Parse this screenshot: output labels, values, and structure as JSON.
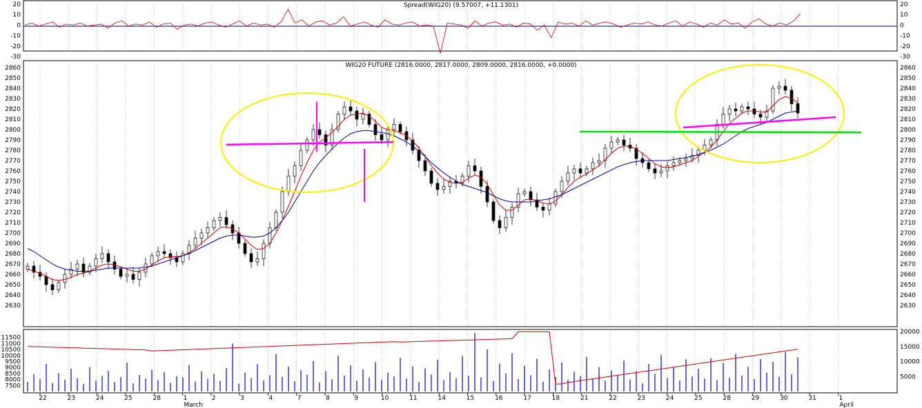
{
  "chart_data": [
    {
      "type": "line",
      "title": "Spread(WIG20) (9.57007, +11.1301)",
      "ylim": [
        -30,
        20
      ],
      "y_ticks": [
        "20",
        "10",
        "0",
        "-10",
        "-20",
        "-30"
      ],
      "series": [
        {
          "name": "",
          "color": "#cc0000",
          "values": [
            0,
            2,
            -1,
            1,
            3,
            -2,
            1,
            0,
            2,
            -1,
            0,
            1,
            -3,
            2,
            4,
            -1,
            1,
            0,
            3,
            -2,
            1,
            2,
            -4,
            0,
            1,
            -1,
            2,
            3,
            0,
            -2,
            1,
            4,
            -1,
            2,
            0,
            1,
            -2,
            3,
            15,
            2,
            5,
            -1,
            3,
            4,
            0,
            2,
            8,
            -1,
            1,
            3,
            0,
            -2,
            5,
            1,
            0,
            2,
            3,
            -1,
            0,
            -1,
            -27,
            2,
            1,
            0,
            -3,
            4,
            -1,
            2,
            3,
            0,
            1,
            -2,
            2,
            1,
            -5,
            0,
            -12,
            3,
            1,
            2,
            -1,
            4,
            0,
            2,
            3,
            1,
            -2,
            0,
            2,
            1,
            3,
            0,
            -1,
            2,
            4,
            -1,
            3,
            1,
            -2,
            2,
            0,
            5,
            1,
            2,
            -3,
            3,
            6,
            1,
            -1,
            2,
            0,
            4,
            11
          ]
        }
      ]
    },
    {
      "type": "candlestick",
      "title": "WIG20 FUTURE (2816.0000, 2817.0000, 2809.0000, 2816.0000, +0.0000)",
      "ylim": [
        2620,
        2860
      ],
      "y_ticks": [
        "2860",
        "2850",
        "2840",
        "2830",
        "2820",
        "2810",
        "2800",
        "2790",
        "2780",
        "2770",
        "2760",
        "2750",
        "2740",
        "2730",
        "2720",
        "2710",
        "2700",
        "2690",
        "2680",
        "2670",
        "2660",
        "2650",
        "2640",
        "2630"
      ],
      "x_ticks": [
        "22",
        "23",
        "24",
        "25",
        "28",
        "1",
        "2",
        "3",
        "4",
        "7",
        "8",
        "9",
        "10",
        "11",
        "14",
        "15",
        "16",
        "17",
        "18",
        "21",
        "22",
        "23",
        "24",
        "25",
        "28",
        "29",
        "30",
        "31",
        "1"
      ],
      "month_labels": [
        "March",
        "April"
      ],
      "close": [
        2668,
        2662,
        2658,
        2650,
        2645,
        2652,
        2660,
        2665,
        2670,
        2662,
        2668,
        2675,
        2680,
        2672,
        2665,
        2658,
        2660,
        2655,
        2662,
        2670,
        2678,
        2682,
        2680,
        2676,
        2672,
        2680,
        2688,
        2695,
        2700,
        2705,
        2712,
        2715,
        2708,
        2700,
        2690,
        2680,
        2672,
        2675,
        2690,
        2705,
        2720,
        2740,
        2755,
        2765,
        2780,
        2790,
        2800,
        2795,
        2785,
        2800,
        2815,
        2822,
        2818,
        2810,
        2815,
        2805,
        2795,
        2790,
        2800,
        2805,
        2798,
        2790,
        2780,
        2770,
        2760,
        2748,
        2742,
        2745,
        2750,
        2748,
        2755,
        2765,
        2760,
        2745,
        2730,
        2712,
        2705,
        2715,
        2725,
        2738,
        2740,
        2732,
        2725,
        2722,
        2728,
        2740,
        2750,
        2758,
        2762,
        2758,
        2762,
        2768,
        2770,
        2782,
        2788,
        2790,
        2785,
        2782,
        2772,
        2768,
        2762,
        2758,
        2760,
        2765,
        2768,
        2770,
        2772,
        2775,
        2780,
        2785,
        2790,
        2805,
        2815,
        2820,
        2818,
        2822,
        2820,
        2815,
        2812,
        2818,
        2840,
        2842,
        2838,
        2825,
        2816
      ],
      "ma_fast": [
        2665,
        2663,
        2661,
        2658,
        2655,
        2654,
        2655,
        2657,
        2660,
        2661,
        2663,
        2666,
        2669,
        2670,
        2669,
        2667,
        2665,
        2663,
        2663,
        2665,
        2669,
        2673,
        2676,
        2677,
        2677,
        2678,
        2681,
        2685,
        2690,
        2695,
        2700,
        2705,
        2706,
        2704,
        2700,
        2694,
        2688,
        2684,
        2685,
        2690,
        2700,
        2712,
        2726,
        2740,
        2755,
        2768,
        2780,
        2788,
        2792,
        2797,
        2803,
        2810,
        2814,
        2815,
        2816,
        2813,
        2808,
        2802,
        2800,
        2799,
        2797,
        2794,
        2789,
        2782,
        2774,
        2765,
        2758,
        2752,
        2749,
        2748,
        2749,
        2753,
        2756,
        2754,
        2747,
        2737,
        2727,
        2722,
        2722,
        2727,
        2732,
        2733,
        2731,
        2729,
        2728,
        2731,
        2737,
        2744,
        2750,
        2754,
        2757,
        2761,
        2765,
        2771,
        2777,
        2782,
        2784,
        2784,
        2781,
        2777,
        2772,
        2767,
        2764,
        2763,
        2764,
        2766,
        2768,
        2770,
        2774,
        2778,
        2783,
        2790,
        2798,
        2806,
        2811,
        2816,
        2818,
        2818,
        2817,
        2817,
        2823,
        2829,
        2832,
        2830,
        2826
      ],
      "ma_slow": [
        2685,
        2682,
        2678,
        2674,
        2670,
        2667,
        2665,
        2664,
        2663,
        2663,
        2663,
        2664,
        2665,
        2666,
        2666,
        2666,
        2666,
        2666,
        2666,
        2667,
        2668,
        2670,
        2672,
        2674,
        2676,
        2678,
        2680,
        2683,
        2686,
        2689,
        2692,
        2695,
        2697,
        2698,
        2698,
        2697,
        2696,
        2696,
        2697,
        2700,
        2705,
        2712,
        2720,
        2730,
        2740,
        2750,
        2760,
        2768,
        2775,
        2781,
        2787,
        2792,
        2796,
        2798,
        2799,
        2799,
        2798,
        2797,
        2796,
        2794,
        2791,
        2788,
        2784,
        2779,
        2774,
        2768,
        2763,
        2758,
        2754,
        2750,
        2747,
        2745,
        2743,
        2741,
        2739,
        2736,
        2733,
        2731,
        2730,
        2730,
        2730,
        2730,
        2731,
        2732,
        2733,
        2735,
        2737,
        2740,
        2743,
        2746,
        2749,
        2752,
        2755,
        2758,
        2761,
        2764,
        2766,
        2768,
        2769,
        2770,
        2770,
        2770,
        2770,
        2770,
        2771,
        2772,
        2773,
        2774,
        2776,
        2778,
        2780,
        2783,
        2786,
        2790,
        2794,
        2798,
        2801,
        2803,
        2805,
        2807,
        2810,
        2813,
        2816,
        2817,
        2818
      ]
    },
    {
      "type": "bar",
      "ylim_left": [
        7000,
        12000
      ],
      "y_ticks_left": [
        "11500",
        "11000",
        "10500",
        "10000",
        "9500",
        "9000",
        "8500",
        "8000",
        "7500"
      ],
      "ylim_right": [
        0,
        20000
      ],
      "y_ticks_right": [
        "20000",
        "15000",
        "10000",
        "5000"
      ],
      "volume": [
        3200,
        5800,
        4100,
        9200,
        2800,
        6100,
        3900,
        7600,
        4400,
        2500,
        8100,
        3600,
        5200,
        6900,
        3100,
        4800,
        9600,
        2700,
        5500,
        4300,
        7200,
        3800,
        6400,
        2900,
        5100,
        4700,
        8800,
        3300,
        6700,
        4200,
        5900,
        3500,
        7800,
        16000,
        2600,
        6300,
        4500,
        9100,
        3700,
        5400,
        12500,
        4900,
        8300,
        3400,
        7100,
        5600,
        10200,
        3000,
        6800,
        4100,
        12000,
        5300,
        8700,
        3600,
        7400,
        4600,
        9800,
        3900,
        6200,
        5000,
        11200,
        4300,
        8400,
        3200,
        7700,
        5700,
        10600,
        3800,
        6500,
        4400,
        11800,
        5200,
        19500,
        4700,
        14000,
        3500,
        9300,
        6000,
        12800,
        4100,
        8600,
        5400,
        10900,
        3300,
        7300,
        4800,
        9700,
        3900,
        6600,
        5100,
        11500,
        4200,
        8100,
        3600,
        7000,
        5500,
        10300,
        4000,
        6800,
        2700,
        9200,
        5900,
        12200,
        4500,
        8000,
        3700,
        10700,
        5000,
        7600,
        4300,
        11100,
        3800,
        9500,
        4600,
        12500,
        5300,
        8200,
        4100,
        10800,
        6300,
        9900,
        4900,
        13200,
        5700,
        11400
      ]
    }
  ]
}
